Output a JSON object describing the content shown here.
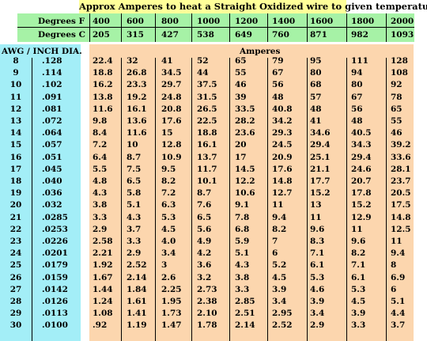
{
  "title": "Approx Amperes to heat a Straight Oxidized wire to given temperature",
  "header": {
    "degrees_f_label": "Degrees F",
    "degrees_c_label": "Degrees C",
    "degrees_f": [
      "400",
      "600",
      "800",
      "1000",
      "1200",
      "1400",
      "1600",
      "1800",
      "2000"
    ],
    "degrees_c": [
      "205",
      "315",
      "427",
      "538",
      "649",
      "760",
      "871",
      "982",
      "1093"
    ]
  },
  "awg_header": "AWG  /  INCH DIA.",
  "amperes_header": "Amperes",
  "rows": [
    {
      "awg": "8",
      "dia": ".128",
      "amps": [
        "22.4",
        "32",
        "41",
        "52",
        "65",
        "79",
        "95",
        "111",
        "128"
      ]
    },
    {
      "awg": "9",
      "dia": ".114",
      "amps": [
        "18.8",
        "26.8",
        "34.5",
        "44",
        "55",
        "67",
        "80",
        "94",
        "108"
      ]
    },
    {
      "awg": "10",
      "dia": ".102",
      "amps": [
        "16.2",
        "23.3",
        "29.7",
        "37.5",
        "46",
        "56",
        "68",
        "80",
        "92"
      ]
    },
    {
      "awg": "11",
      "dia": ".091",
      "amps": [
        "13.8",
        "19.2",
        "24.8",
        "31.5",
        "39",
        "48",
        "57",
        "67",
        "78"
      ]
    },
    {
      "awg": "12",
      "dia": ".081",
      "amps": [
        "11.6",
        "16.1",
        "20.8",
        "26.5",
        "33.5",
        "40.8",
        "48",
        "56",
        "65"
      ]
    },
    {
      "awg": "13",
      "dia": ".072",
      "amps": [
        "9.8",
        "13.6",
        "17.6",
        "22.5",
        "28.2",
        "34.2",
        "41",
        "48",
        "55"
      ]
    },
    {
      "awg": "14",
      "dia": ".064",
      "amps": [
        "8.4",
        "11.6",
        "15",
        "18.8",
        "23.6",
        "29.3",
        "34.6",
        "40.5",
        "46"
      ]
    },
    {
      "awg": "15",
      "dia": ".057",
      "amps": [
        "7.2",
        "10",
        "12.8",
        "16.1",
        "20",
        "24.5",
        "29.4",
        "34.3",
        "39.2"
      ]
    },
    {
      "awg": "16",
      "dia": ".051",
      "amps": [
        "6.4",
        "8.7",
        "10.9",
        "13.7",
        "17",
        "20.9",
        "25.1",
        "29.4",
        "33.6"
      ]
    },
    {
      "awg": "17",
      "dia": ".045",
      "amps": [
        "5.5",
        "7.5",
        "9.5",
        "11.7",
        "14.5",
        "17.6",
        "21.1",
        "24.6",
        "28.1"
      ]
    },
    {
      "awg": "18",
      "dia": ".040",
      "amps": [
        "4.8",
        "6.5",
        "8.2",
        "10.1",
        "12.2",
        "14.8",
        "17.7",
        "20.7",
        "23.7"
      ]
    },
    {
      "awg": "19",
      "dia": ".036",
      "amps": [
        "4.3",
        "5.8",
        "7.2",
        "8.7",
        "10.6",
        "12.7",
        "15.2",
        "17.8",
        "20.5"
      ]
    },
    {
      "awg": "20",
      "dia": ".032",
      "amps": [
        "3.8",
        "5.1",
        "6.3",
        "7.6",
        "9.1",
        "11",
        "13",
        "15.2",
        "17.5"
      ]
    },
    {
      "awg": "21",
      "dia": ".0285",
      "amps": [
        "3.3",
        "4.3",
        "5.3",
        "6.5",
        "7.8",
        "9.4",
        "11",
        "12.9",
        "14.8"
      ]
    },
    {
      "awg": "22",
      "dia": ".0253",
      "amps": [
        "2.9",
        "3.7",
        "4.5",
        "5.6",
        "6.8",
        "8.2",
        "9.6",
        "11",
        "12.5"
      ]
    },
    {
      "awg": "23",
      "dia": ".0226",
      "amps": [
        "2.58",
        "3.3",
        "4.0",
        "4.9",
        "5.9",
        "7",
        "8.3",
        "9.6",
        "11"
      ]
    },
    {
      "awg": "24",
      "dia": ".0201",
      "amps": [
        "2.21",
        "2.9",
        "3.4",
        "4.2",
        "5.1",
        "6",
        "7.1",
        "8.2",
        "9.4"
      ]
    },
    {
      "awg": "25",
      "dia": ".0179",
      "amps": [
        "1.92",
        "2.52",
        "3",
        "3.6",
        "4.3",
        "5.2",
        "6.1",
        "7.1",
        "8"
      ]
    },
    {
      "awg": "26",
      "dia": ".0159",
      "amps": [
        "1.67",
        "2.14",
        "2.6",
        "3.2",
        "3.8",
        "4.5",
        "5.3",
        "6.1",
        "6.9"
      ]
    },
    {
      "awg": "27",
      "dia": ".0142",
      "amps": [
        "1.44",
        "1.84",
        "2.25",
        "2.73",
        "3.3",
        "3.9",
        "4.6",
        "5.3",
        "6"
      ]
    },
    {
      "awg": "28",
      "dia": ".0126",
      "amps": [
        "1.24",
        "1.61",
        "1.95",
        "2.38",
        "2.85",
        "3.4",
        "3.9",
        "4.5",
        "5.1"
      ]
    },
    {
      "awg": "29",
      "dia": ".0113",
      "amps": [
        "1.08",
        "1.41",
        "1.73",
        "2.10",
        "2.51",
        "2.95",
        "3.4",
        "3.9",
        "4.4"
      ]
    },
    {
      "awg": "30",
      "dia": ".0100",
      "amps": [
        ".92",
        "1.19",
        "1.47",
        "1.78",
        "2.14",
        "2.52",
        "2.9",
        "3.3",
        "3.7"
      ]
    }
  ]
}
